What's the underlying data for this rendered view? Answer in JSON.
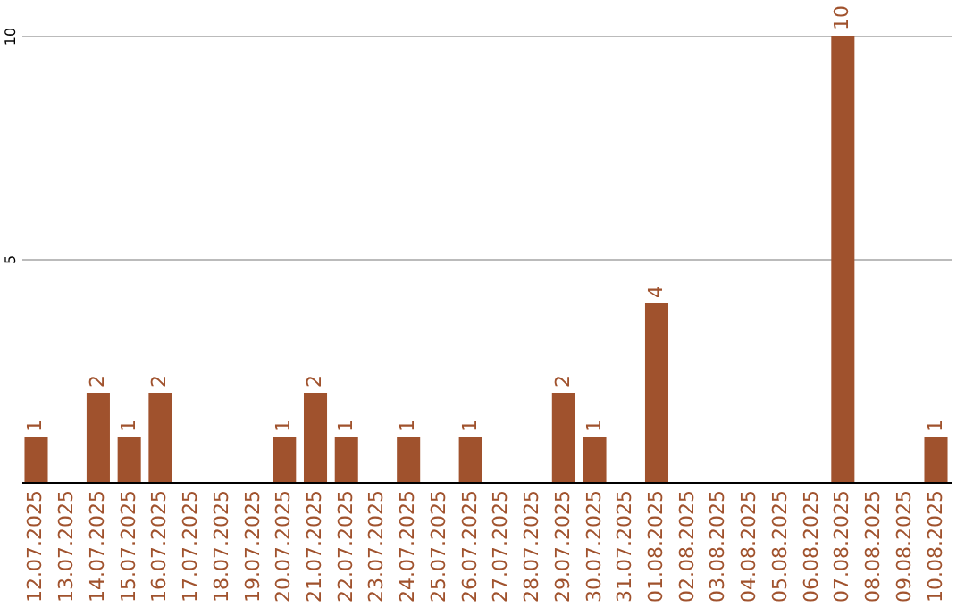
{
  "chart_data": {
    "type": "bar",
    "categories": [
      "12.07.2025",
      "13.07.2025",
      "14.07.2025",
      "15.07.2025",
      "16.07.2025",
      "17.07.2025",
      "18.07.2025",
      "19.07.2025",
      "20.07.2025",
      "21.07.2025",
      "22.07.2025",
      "23.07.2025",
      "24.07.2025",
      "25.07.2025",
      "26.07.2025",
      "27.07.2025",
      "28.07.2025",
      "29.07.2025",
      "30.07.2025",
      "31.07.2025",
      "01.08.2025",
      "02.08.2025",
      "03.08.2025",
      "04.08.2025",
      "05.08.2025",
      "06.08.2025",
      "07.08.2025",
      "08.08.2025",
      "09.08.2025",
      "10.08.2025"
    ],
    "values": [
      1,
      0,
      2,
      1,
      2,
      0,
      0,
      0,
      1,
      2,
      1,
      0,
      1,
      0,
      1,
      0,
      0,
      2,
      1,
      0,
      4,
      0,
      0,
      0,
      0,
      0,
      10,
      0,
      0,
      1
    ],
    "value_labels": [
      "1",
      null,
      "2",
      "1",
      "2",
      null,
      null,
      null,
      "1",
      "2",
      "1",
      null,
      "1",
      null,
      "1",
      null,
      null,
      "2",
      "1",
      null,
      "4",
      null,
      null,
      null,
      null,
      null,
      "10",
      null,
      null,
      "1"
    ],
    "color": "#a0522d",
    "ylim": [
      0,
      10
    ],
    "yticks": [
      5,
      10
    ],
    "grid": "y"
  }
}
